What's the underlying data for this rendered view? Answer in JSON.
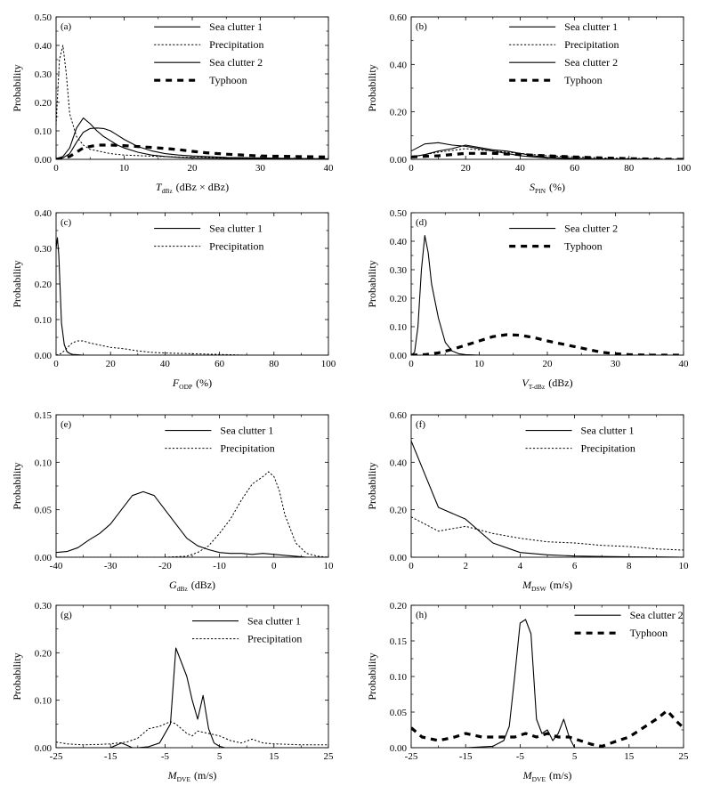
{
  "chart_data": [
    {
      "panel": "(a)",
      "type": "line",
      "ylabel": "Probability",
      "xlabel": "T",
      "xlabel_sub": "dBz",
      "xlabel_unit": "(dBz × dBz)",
      "xlim": [
        0,
        40
      ],
      "ylim": [
        0,
        0.5
      ],
      "xticks": [
        0,
        10,
        20,
        30,
        40
      ],
      "yticks": [
        0,
        0.1,
        0.2,
        0.3,
        0.4,
        0.5
      ],
      "ydec": 2,
      "legend_x": 0.36,
      "legend_y": 0.07,
      "series": [
        {
          "name": "Sea clutter 1",
          "style": "solid",
          "x": [
            0,
            1,
            2,
            3,
            4,
            5,
            6,
            7,
            8,
            9,
            10,
            12,
            14,
            16,
            18,
            20,
            25,
            30,
            35,
            40
          ],
          "y": [
            0.002,
            0.005,
            0.02,
            0.06,
            0.095,
            0.108,
            0.11,
            0.108,
            0.1,
            0.085,
            0.07,
            0.045,
            0.03,
            0.02,
            0.015,
            0.012,
            0.007,
            0.005,
            0.003,
            0.002
          ]
        },
        {
          "name": "Precipitation",
          "style": "dotted",
          "x": [
            0,
            0.5,
            1,
            1.5,
            2,
            3,
            4,
            5,
            6,
            8,
            10,
            15,
            20,
            30,
            40
          ],
          "y": [
            0.12,
            0.35,
            0.4,
            0.3,
            0.16,
            0.08,
            0.05,
            0.035,
            0.03,
            0.02,
            0.015,
            0.01,
            0.007,
            0.004,
            0.002
          ]
        },
        {
          "name": "Sea clutter 2",
          "style": "solid",
          "x": [
            0,
            1,
            2,
            3,
            4,
            5,
            6,
            7,
            8,
            9,
            10,
            12,
            14,
            16,
            18,
            20,
            25,
            30,
            35,
            40
          ],
          "y": [
            0.002,
            0.01,
            0.04,
            0.11,
            0.145,
            0.125,
            0.1,
            0.08,
            0.065,
            0.05,
            0.04,
            0.025,
            0.015,
            0.01,
            0.007,
            0.005,
            0.003,
            0.002,
            0.001,
            0.001
          ]
        },
        {
          "name": "Typhoon",
          "style": "bold-dash",
          "x": [
            0,
            2,
            4,
            6,
            8,
            10,
            12,
            14,
            16,
            18,
            20,
            22,
            25,
            30,
            35,
            40
          ],
          "y": [
            0,
            0.01,
            0.04,
            0.05,
            0.05,
            0.048,
            0.045,
            0.042,
            0.038,
            0.034,
            0.028,
            0.023,
            0.018,
            0.012,
            0.01,
            0.008
          ]
        }
      ]
    },
    {
      "panel": "(b)",
      "type": "line",
      "ylabel": "Probability",
      "xlabel": "S",
      "xlabel_sub": "PIN",
      "xlabel_unit": "(%)",
      "xlim": [
        0,
        100
      ],
      "ylim": [
        0,
        0.6
      ],
      "xticks": [
        0,
        20,
        40,
        60,
        80,
        100
      ],
      "yticks": [
        0,
        0.2,
        0.4,
        0.6
      ],
      "ydec": 2,
      "legend_x": 0.36,
      "legend_y": 0.07,
      "series": [
        {
          "name": "Sea clutter 1",
          "style": "solid",
          "x": [
            0,
            5,
            10,
            15,
            20,
            25,
            30,
            35,
            40,
            45,
            50,
            60,
            70,
            80,
            90,
            100
          ],
          "y": [
            0.035,
            0.065,
            0.07,
            0.06,
            0.055,
            0.045,
            0.035,
            0.025,
            0.015,
            0.01,
            0.006,
            0.003,
            0.001,
            0.001,
            0,
            0
          ]
        },
        {
          "name": "Precipitation",
          "style": "dotted",
          "x": [
            0,
            10,
            20,
            25,
            30,
            40,
            50,
            60,
            70,
            80,
            90,
            100
          ],
          "y": [
            0.01,
            0.03,
            0.045,
            0.04,
            0.035,
            0.025,
            0.015,
            0.01,
            0.006,
            0.004,
            0.002,
            0.001
          ]
        },
        {
          "name": "Sea clutter 2",
          "style": "solid",
          "x": [
            0,
            5,
            10,
            15,
            20,
            25,
            30,
            35,
            40,
            45,
            50,
            60,
            70,
            80,
            90,
            100
          ],
          "y": [
            0.01,
            0.02,
            0.035,
            0.045,
            0.06,
            0.05,
            0.04,
            0.035,
            0.025,
            0.015,
            0.008,
            0.004,
            0.002,
            0.001,
            0,
            0
          ]
        },
        {
          "name": "Typhoon",
          "style": "bold-dash",
          "x": [
            0,
            10,
            20,
            30,
            40,
            50,
            60,
            70,
            80,
            90,
            100
          ],
          "y": [
            0.01,
            0.015,
            0.025,
            0.025,
            0.02,
            0.015,
            0.01,
            0.006,
            0.003,
            0.001,
            0
          ]
        }
      ]
    },
    {
      "panel": "(c)",
      "type": "line",
      "ylabel": "Probability",
      "xlabel": "F",
      "xlabel_sub": "ODP",
      "xlabel_unit": "(%)",
      "xlim": [
        0,
        100
      ],
      "ylim": [
        0,
        0.4
      ],
      "xticks": [
        0,
        20,
        40,
        60,
        80,
        100
      ],
      "yticks": [
        0,
        0.1,
        0.2,
        0.3,
        0.4
      ],
      "ydec": 2,
      "legend_x": 0.36,
      "legend_y": 0.11,
      "series": [
        {
          "name": "Sea clutter 1",
          "style": "solid",
          "x": [
            0,
            0.5,
            1,
            2,
            3,
            4,
            5,
            6,
            8,
            10,
            20,
            30,
            100
          ],
          "y": [
            0.3,
            0.33,
            0.28,
            0.09,
            0.03,
            0.01,
            0.005,
            0.002,
            0.001,
            0,
            0,
            0,
            0
          ]
        },
        {
          "name": "Precipitation",
          "style": "dotted",
          "x": [
            0,
            2,
            4,
            6,
            8,
            10,
            12,
            15,
            18,
            20,
            25,
            30,
            35,
            40,
            50,
            60,
            65,
            70,
            100
          ],
          "y": [
            0,
            0.005,
            0.02,
            0.035,
            0.04,
            0.04,
            0.035,
            0.03,
            0.025,
            0.022,
            0.018,
            0.012,
            0.008,
            0.006,
            0.004,
            0.002,
            0.001,
            0,
            0
          ]
        }
      ]
    },
    {
      "panel": "(d)",
      "type": "line",
      "ylabel": "Probability",
      "xlabel": "V",
      "xlabel_sub": "T-dBz",
      "xlabel_unit": "(dBz)",
      "xlim": [
        0,
        40
      ],
      "ylim": [
        0,
        0.5
      ],
      "xticks": [
        0,
        10,
        20,
        30,
        40
      ],
      "yticks": [
        0,
        0.1,
        0.2,
        0.3,
        0.4,
        0.5
      ],
      "ydec": 2,
      "legend_x": 0.36,
      "legend_y": 0.11,
      "series": [
        {
          "name": "Sea clutter 2",
          "style": "solid",
          "x": [
            0,
            0.5,
            1,
            1.5,
            2,
            2.5,
            3,
            4,
            5,
            6,
            7,
            8,
            10,
            15,
            20,
            40
          ],
          "y": [
            0,
            0.01,
            0.1,
            0.3,
            0.42,
            0.36,
            0.25,
            0.13,
            0.045,
            0.015,
            0.005,
            0.002,
            0,
            0,
            0,
            0
          ]
        },
        {
          "name": "Typhoon",
          "style": "bold-dash",
          "x": [
            0,
            2,
            4,
            6,
            8,
            10,
            12,
            14,
            16,
            18,
            20,
            22,
            24,
            26,
            28,
            30,
            32,
            35,
            40
          ],
          "y": [
            0,
            0.002,
            0.008,
            0.02,
            0.035,
            0.05,
            0.065,
            0.072,
            0.07,
            0.062,
            0.05,
            0.04,
            0.03,
            0.02,
            0.01,
            0.005,
            0.002,
            0,
            0
          ]
        }
      ]
    },
    {
      "panel": "(e)",
      "type": "line",
      "ylabel": "Probability",
      "xlabel": "G",
      "xlabel_sub": "dBz",
      "xlabel_unit": "(dBz)",
      "xlim": [
        -40,
        10
      ],
      "ylim": [
        0,
        0.15
      ],
      "xticks": [
        -40,
        -30,
        -20,
        -10,
        0,
        10
      ],
      "yticks": [
        0,
        0.05,
        0.1,
        0.15
      ],
      "ydec": 2,
      "legend_x": 0.4,
      "legend_y": 0.11,
      "series": [
        {
          "name": "Sea clutter 1",
          "style": "solid",
          "x": [
            -40,
            -38,
            -36,
            -34,
            -32,
            -30,
            -28,
            -26,
            -24,
            -22,
            -20,
            -18,
            -16,
            -14,
            -12,
            -10,
            -8,
            -6,
            -4,
            -2,
            0,
            2,
            4,
            6,
            10
          ],
          "y": [
            0.005,
            0.006,
            0.01,
            0.018,
            0.025,
            0.035,
            0.05,
            0.065,
            0.069,
            0.065,
            0.05,
            0.035,
            0.02,
            0.012,
            0.008,
            0.005,
            0.004,
            0.004,
            0.003,
            0.004,
            0.003,
            0.002,
            0.001,
            0,
            0
          ]
        },
        {
          "name": "Precipitation",
          "style": "dotted",
          "x": [
            -40,
            -30,
            -20,
            -16,
            -14,
            -12,
            -10,
            -8,
            -6,
            -4,
            -2,
            -1,
            0,
            1,
            2,
            4,
            6,
            8,
            10
          ],
          "y": [
            0,
            0,
            0,
            0.001,
            0.005,
            0.012,
            0.025,
            0.04,
            0.06,
            0.077,
            0.085,
            0.09,
            0.085,
            0.07,
            0.045,
            0.015,
            0.004,
            0.001,
            0
          ]
        }
      ]
    },
    {
      "panel": "(f)",
      "type": "line",
      "ylabel": "Probability",
      "xlabel": "M",
      "xlabel_sub": "DSW",
      "xlabel_unit": "(m/s)",
      "xlim": [
        0,
        10
      ],
      "ylim": [
        0,
        0.6
      ],
      "xticks": [
        0,
        2,
        4,
        6,
        8,
        10
      ],
      "yticks": [
        0,
        0.2,
        0.4,
        0.6
      ],
      "ydec": 2,
      "legend_x": 0.42,
      "legend_y": 0.11,
      "series": [
        {
          "name": "Sea clutter 1",
          "style": "solid",
          "x": [
            0,
            0.5,
            1,
            2,
            3,
            4,
            5,
            6,
            7,
            8,
            9,
            10
          ],
          "y": [
            0.49,
            0.35,
            0.21,
            0.16,
            0.06,
            0.02,
            0.01,
            0.005,
            0.003,
            0.002,
            0.001,
            0
          ]
        },
        {
          "name": "Precipitation",
          "style": "dotted",
          "x": [
            0,
            0.5,
            1,
            2,
            3,
            4,
            5,
            6,
            7,
            8,
            9,
            10
          ],
          "y": [
            0.17,
            0.14,
            0.11,
            0.13,
            0.1,
            0.08,
            0.065,
            0.06,
            0.05,
            0.045,
            0.035,
            0.03
          ]
        }
      ]
    },
    {
      "panel": "(g)",
      "type": "line",
      "ylabel": "Probability",
      "xlabel": "M",
      "xlabel_sub": "DVE",
      "xlabel_unit": "(m/s)",
      "xlim": [
        -25,
        25
      ],
      "ylim": [
        0,
        0.3
      ],
      "xticks": [
        -25,
        -15,
        -5,
        5,
        15,
        25
      ],
      "yticks": [
        0,
        0.1,
        0.2,
        0.3
      ],
      "ydec": 2,
      "legend_x": 0.5,
      "legend_y": 0.11,
      "series": [
        {
          "name": "Sea clutter 1",
          "style": "solid",
          "x": [
            -25,
            -20,
            -15,
            -13,
            -12,
            -11,
            -10,
            -8,
            -6,
            -4,
            -3,
            -2,
            -1,
            0,
            1,
            2,
            3,
            4,
            5,
            6,
            25
          ],
          "y": [
            0,
            0,
            0,
            0.01,
            0.005,
            0,
            0,
            0.002,
            0.01,
            0.05,
            0.21,
            0.18,
            0.15,
            0.1,
            0.06,
            0.11,
            0.04,
            0.01,
            0.003,
            0,
            0
          ]
        },
        {
          "name": "Precipitation",
          "style": "dotted",
          "x": [
            -25,
            -23,
            -20,
            -17,
            -15,
            -12,
            -10,
            -8,
            -6,
            -4,
            -3,
            -1,
            0,
            1,
            3,
            5,
            7,
            9,
            11,
            13,
            15,
            18,
            20,
            23,
            25
          ],
          "y": [
            0.012,
            0.008,
            0.006,
            0.007,
            0.008,
            0.012,
            0.02,
            0.04,
            0.045,
            0.055,
            0.05,
            0.03,
            0.025,
            0.035,
            0.03,
            0.025,
            0.015,
            0.01,
            0.018,
            0.01,
            0.008,
            0.007,
            0.006,
            0.006,
            0.006
          ]
        }
      ]
    },
    {
      "panel": "(h)",
      "type": "line",
      "ylabel": "Probability",
      "xlabel": "M",
      "xlabel_sub": "DVE",
      "xlabel_unit": "(m/s)",
      "xlim": [
        -25,
        25
      ],
      "ylim": [
        0,
        0.2
      ],
      "xticks": [
        -25,
        -15,
        -5,
        5,
        15,
        25
      ],
      "yticks": [
        0,
        0.05,
        0.1,
        0.15,
        0.2
      ],
      "ydec": 2,
      "legend_x": 0.6,
      "legend_y": 0.07,
      "series": [
        {
          "name": "Sea clutter 2",
          "style": "solid",
          "x": [
            -25,
            -15,
            -10,
            -8,
            -7,
            -6,
            -5,
            -4,
            -3,
            -2,
            -1,
            0,
            1,
            2,
            3,
            4,
            5,
            25
          ],
          "y": [
            0,
            0,
            0.002,
            0.01,
            0.03,
            0.1,
            0.175,
            0.18,
            0.16,
            0.04,
            0.02,
            0.025,
            0.01,
            0.02,
            0.04,
            0.015,
            0,
            0
          ]
        },
        {
          "name": "Typhoon",
          "style": "bold-dash",
          "x": [
            -25,
            -23,
            -20,
            -17,
            -15,
            -12,
            -10,
            -8,
            -6,
            -4,
            -2,
            0,
            2,
            4,
            6,
            8,
            10,
            13,
            15,
            18,
            20,
            22,
            24,
            25
          ],
          "y": [
            0.028,
            0.015,
            0.01,
            0.015,
            0.02,
            0.015,
            0.015,
            0.015,
            0.015,
            0.02,
            0.015,
            0.02,
            0.015,
            0.015,
            0.01,
            0.005,
            0.002,
            0.01,
            0.015,
            0.03,
            0.04,
            0.052,
            0.035,
            0.028
          ]
        }
      ]
    }
  ]
}
